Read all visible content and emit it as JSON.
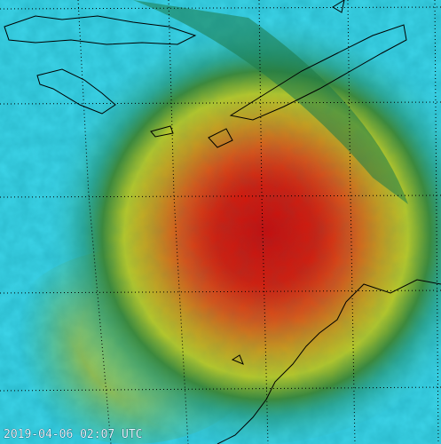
{
  "timestamp": "2019-04-06 02:07 UTC"
}
